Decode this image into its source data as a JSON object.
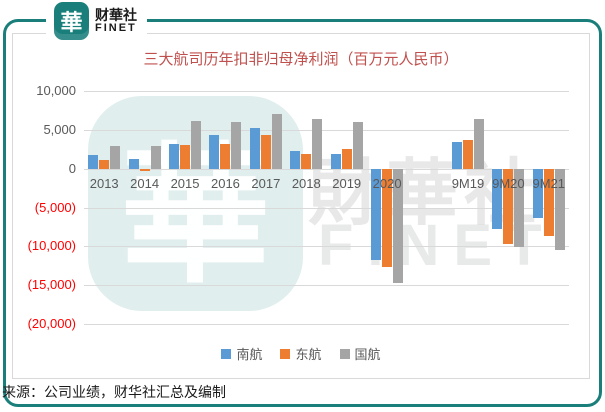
{
  "brand": {
    "logo_glyph": "華",
    "logo_name": "财華社",
    "logo_sub": "FINET",
    "teal": "#1A7F7B"
  },
  "chart": {
    "source_note": "来源：公司业绩，财华社汇总及编制",
    "watermark": {
      "glyph": "華",
      "text": "財華社",
      "subtext": "FINET"
    }
  },
  "chart_data": {
    "type": "bar",
    "title": "三大航司历年扣非归母净利润（百万元人民币）",
    "title_color": "#C0504D",
    "categories": [
      "2013",
      "2014",
      "2015",
      "2016",
      "2017",
      "2018",
      "2019",
      "2020",
      "",
      "9M19",
      "9M20",
      "9M21"
    ],
    "series": [
      {
        "name": "南航",
        "color": "#5B9BD5",
        "values": [
          1800,
          1250,
          3200,
          4300,
          5200,
          2250,
          1900,
          -11700,
          null,
          3450,
          -7800,
          -6400
        ]
      },
      {
        "name": "东航",
        "color": "#ED7D31",
        "values": [
          1150,
          -350,
          3100,
          3200,
          4300,
          1850,
          2500,
          -12700,
          null,
          3700,
          -9750,
          -8650
        ]
      },
      {
        "name": "国航",
        "color": "#A5A5A5",
        "values": [
          2900,
          2950,
          6200,
          6050,
          7050,
          6450,
          5950,
          -14700,
          null,
          6400,
          -10100,
          -10500
        ]
      }
    ],
    "xlabel": "",
    "ylabel": "",
    "ylim": [
      -20000,
      10000
    ],
    "ytick_step": 5000,
    "grid": true,
    "legend_position": "bottom",
    "axis_label_color": "#595959",
    "negative_label_color": "#FF0000"
  }
}
